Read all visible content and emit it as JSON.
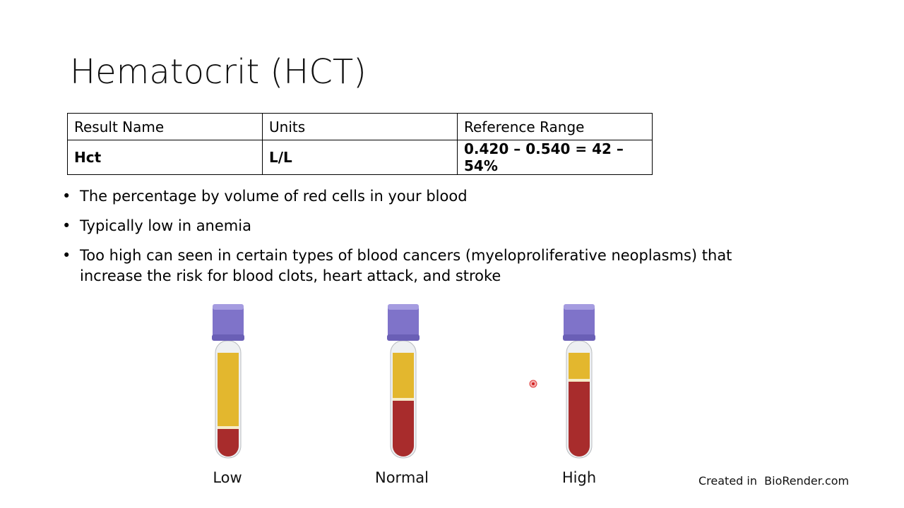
{
  "header": {
    "title": "Hematocrit (HCT)"
  },
  "table": {
    "rows": [
      [
        "Result Name",
        "Units",
        "Reference Range"
      ],
      [
        "Hct",
        "L/L",
        "0.420 – 0.540 = 42 – 54%"
      ]
    ]
  },
  "bullets": [
    "The percentage by volume of red cells in your blood",
    "Typically low in anemia",
    "Too high can seen in certain types of blood cancers (myeloproliferative neoplasms) that increase the risk for blood clots, heart attack, and stroke"
  ],
  "tubes": [
    {
      "label": "Low"
    },
    {
      "label": "Normal"
    },
    {
      "label": "High"
    }
  ],
  "credit": "Created in  BioRender.com"
}
